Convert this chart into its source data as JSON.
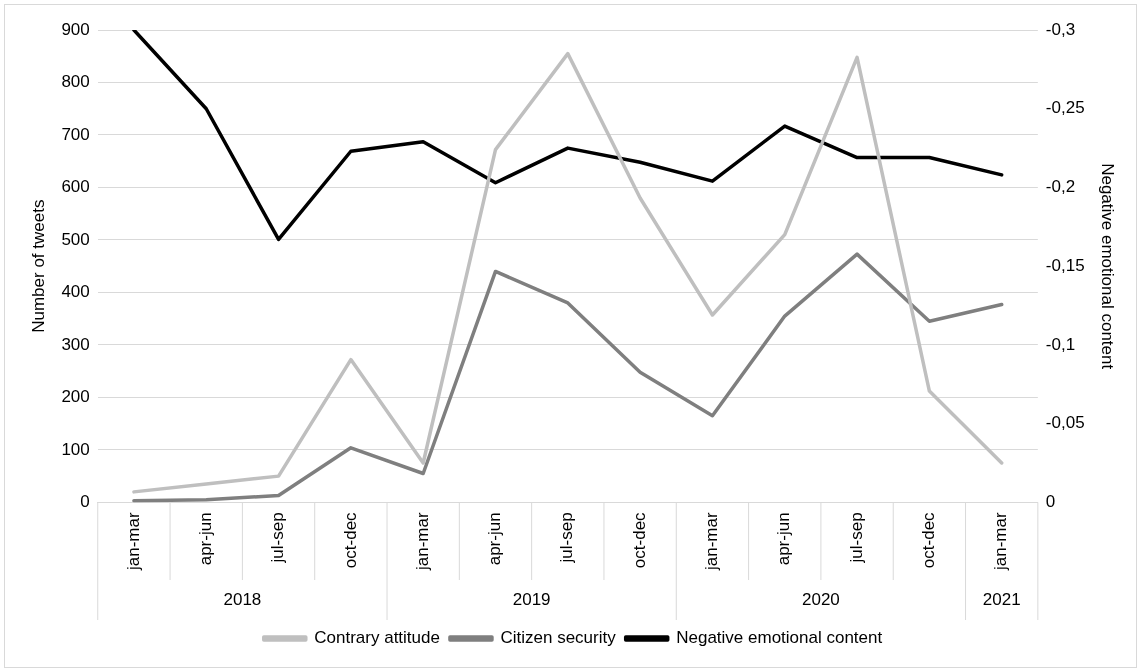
{
  "chart_data": {
    "type": "line",
    "categories": [
      "jan-mar",
      "apr-jun",
      "jul-sep",
      "oct-dec",
      "jan-mar",
      "apr-jun",
      "jul-sep",
      "oct-dec",
      "jan-mar",
      "apr-jun",
      "jul-sep",
      "oct-dec",
      "jan-mar"
    ],
    "annotations": [
      "2018",
      "2019",
      "2020",
      "2021"
    ],
    "series": [
      {
        "name": "Contrary attitude",
        "color": "#bfbfbf",
        "values": [
          20,
          35,
          50,
          272,
          75,
          672,
          855,
          580,
          357,
          510,
          848,
          212,
          75
        ]
      },
      {
        "name": "Citizen security",
        "color": "#7f7f7f",
        "values": [
          3,
          5,
          13,
          104,
          55,
          440,
          380,
          248,
          165,
          355,
          473,
          345,
          377
        ]
      },
      {
        "name": "Negative emotional content",
        "color": "#000000",
        "axis": "y2",
        "values": [
          -0.3,
          -0.25,
          -0.167,
          -0.223,
          -0.229,
          -0.203,
          -0.225,
          -0.216,
          -0.204,
          -0.239,
          -0.219,
          -0.219,
          -0.208
        ]
      }
    ],
    "ylabel": "Number of tweets",
    "y2label": "Negative emotional content",
    "ylim": [
      0,
      900
    ],
    "yticks": [
      0,
      100,
      200,
      300,
      400,
      500,
      600,
      700,
      800,
      900
    ],
    "y2lim": [
      0,
      -0.3
    ],
    "y2ticks": [
      {
        "value": 0,
        "label": "0"
      },
      {
        "value": -0.05,
        "label": "-0,05"
      },
      {
        "value": -0.1,
        "label": "-0,1"
      },
      {
        "value": -0.15,
        "label": "-0,15"
      },
      {
        "value": -0.2,
        "label": "-0,2"
      },
      {
        "value": -0.25,
        "label": "-0,25"
      },
      {
        "value": -0.3,
        "label": "-0,3"
      }
    ],
    "grid": "y",
    "legend": "bottom",
    "line_style": "solid"
  }
}
